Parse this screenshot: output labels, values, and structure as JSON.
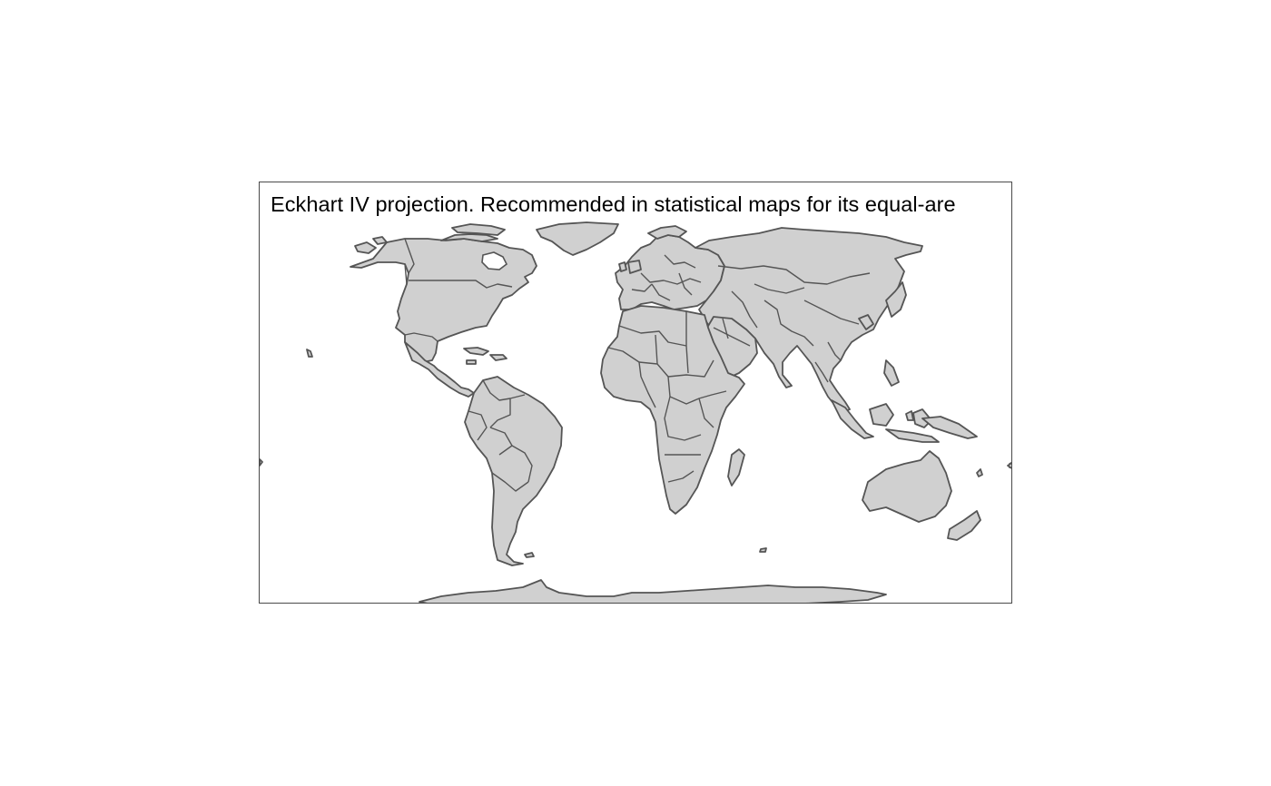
{
  "map": {
    "title": "Eckhart IV projection. Recommended in statistical maps for its equal-are",
    "land_color": "#d0d0d0",
    "border_color": "#555555",
    "frame_color": "#4a4a4a",
    "background_color": "#ffffff"
  }
}
